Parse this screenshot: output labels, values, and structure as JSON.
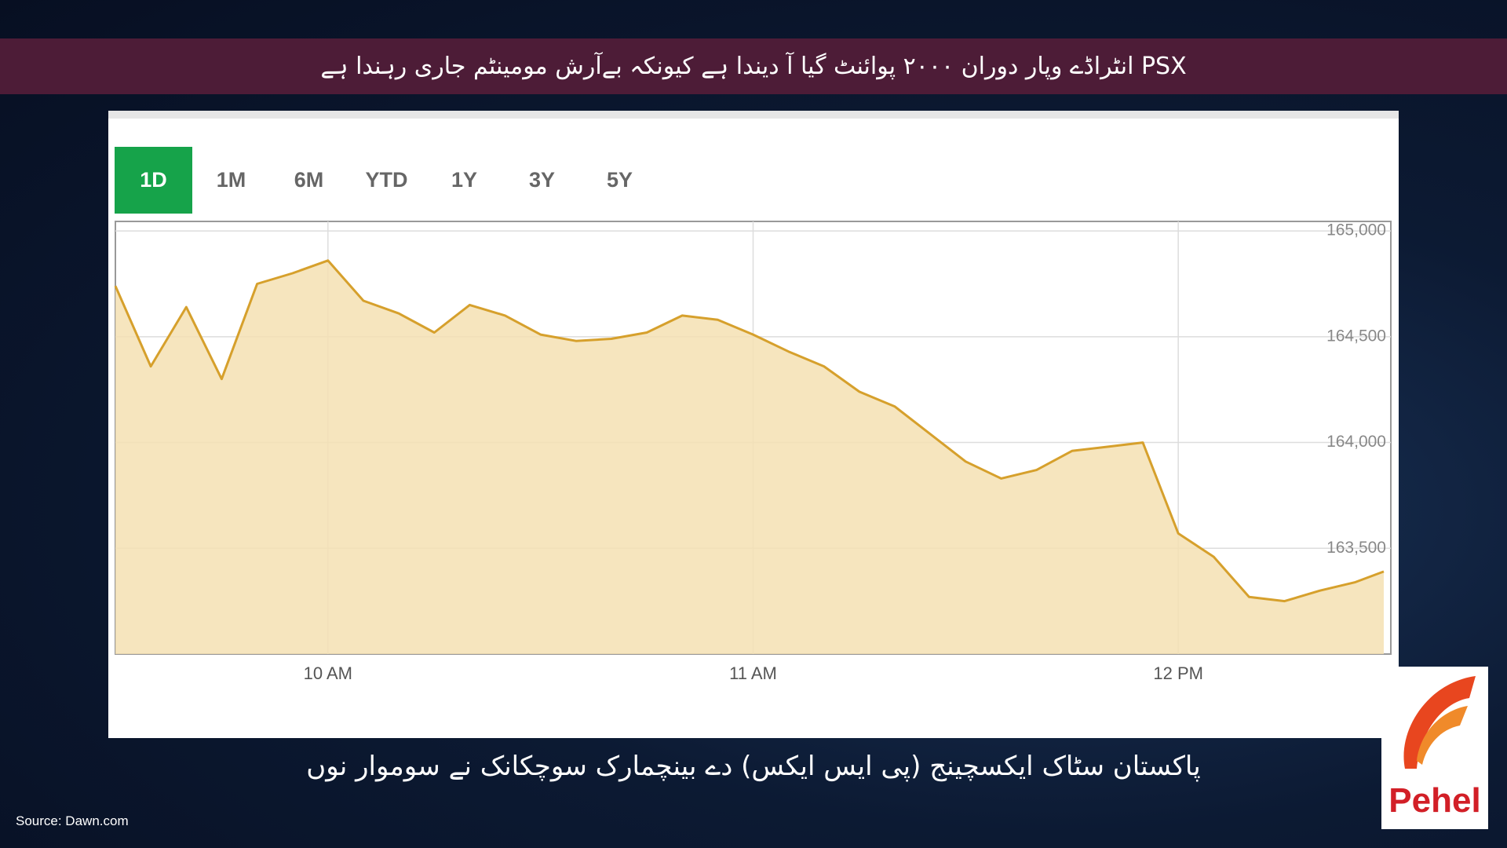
{
  "headline": "PSX انٹراڈے وپار دوران ۲۰۰۰ پوائنٹ گیا آ دیندا ہے کیونکہ بےآرش مومینٹم جاری رہندا ہے",
  "caption": "پاکستان سٹاک ایکسچینج (پی ایس ایکس) دے بینچمارک سوچکانک نے سوموار نوں",
  "source": "Source: Dawn.com",
  "logo": "Pehel",
  "range_tabs": [
    "1D",
    "1M",
    "6M",
    "YTD",
    "1Y",
    "3Y",
    "5Y"
  ],
  "active_tab": 0,
  "chart_data": {
    "type": "area",
    "x": [
      "09:30",
      "09:35",
      "09:40",
      "09:45",
      "09:50",
      "09:55",
      "10:00",
      "10:05",
      "10:10",
      "10:15",
      "10:20",
      "10:25",
      "10:30",
      "10:35",
      "10:40",
      "10:45",
      "10:50",
      "10:55",
      "11:00",
      "11:05",
      "11:10",
      "11:15",
      "11:20",
      "11:25",
      "11:30",
      "11:35",
      "11:40",
      "11:45",
      "11:50",
      "11:55",
      "12:00",
      "12:05",
      "12:10",
      "12:15",
      "12:20",
      "12:25",
      "12:29"
    ],
    "values": [
      164740,
      164360,
      164640,
      164300,
      164750,
      164800,
      164860,
      164670,
      164610,
      164520,
      164650,
      164600,
      164510,
      164480,
      164490,
      164520,
      164600,
      164580,
      164510,
      164430,
      164360,
      164240,
      164170,
      164040,
      163910,
      163830,
      163870,
      163960,
      163980,
      164000,
      163570,
      163460,
      163270,
      163250,
      163300,
      163340,
      163390
    ],
    "color": "#d6a02c",
    "fill": "#f4e1b3",
    "xlim": [
      "09:30",
      "12:30"
    ],
    "xticks": [
      {
        "value": "10:00",
        "label": "10 AM"
      },
      {
        "value": "11:00",
        "label": "11 AM"
      },
      {
        "value": "12:00",
        "label": "12 PM"
      }
    ],
    "ylim": [
      163000,
      165045
    ],
    "yticks": [
      {
        "value": 163500,
        "label": "163,500"
      },
      {
        "value": 164000,
        "label": "164,000"
      },
      {
        "value": 164500,
        "label": "164,500"
      },
      {
        "value": 165000,
        "label": "165,000"
      }
    ],
    "grid": true
  }
}
